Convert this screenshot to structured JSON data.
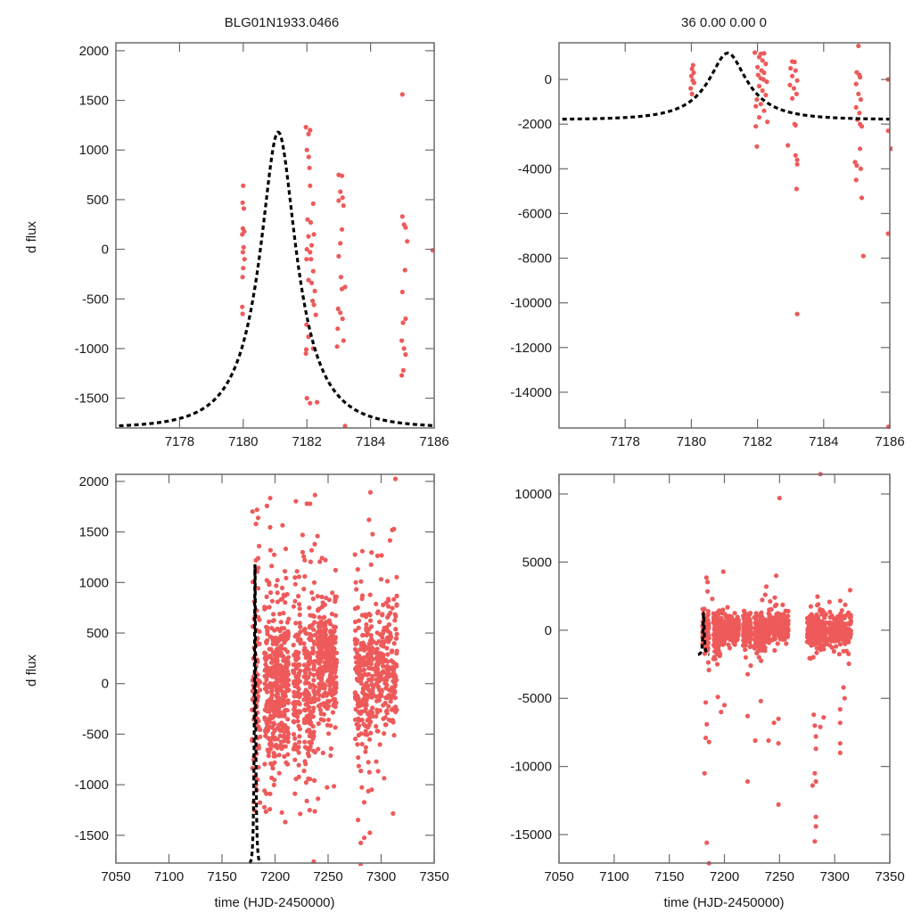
{
  "figure": {
    "title_left": "BLG01N1933.0466",
    "title_right": "36  0.00  0.00  0",
    "point_color": "#ee5a5a",
    "model_color": "#000000"
  },
  "chart_data": [
    {
      "id": "top-left",
      "type": "scatter",
      "title": "BLG01N1933.0466",
      "xlabel": "",
      "ylabel": "d flux",
      "xlim": [
        7176,
        7186
      ],
      "ylim": [
        -1800,
        2080
      ],
      "xticks": [
        7178,
        7180,
        7182,
        7184,
        7186
      ],
      "yticks": [
        -1500,
        -1000,
        -500,
        0,
        500,
        1000,
        1500,
        2000
      ],
      "model": {
        "name": "microlensing model",
        "t0": 7181.1,
        "tE": 1.6,
        "u0": 0.35,
        "amp": 1000,
        "baseline": -1800,
        "style": "dashed"
      },
      "points": [
        [
          7180.0,
          640
        ],
        [
          7179.98,
          470
        ],
        [
          7180.02,
          410
        ],
        [
          7179.99,
          210
        ],
        [
          7180.03,
          180
        ],
        [
          7179.97,
          150
        ],
        [
          7180.01,
          20
        ],
        [
          7179.99,
          -30
        ],
        [
          7180.04,
          -100
        ],
        [
          7180.0,
          -190
        ],
        [
          7179.98,
          -280
        ],
        [
          7179.97,
          -580
        ],
        [
          7179.98,
          -650
        ],
        [
          7181.97,
          1230
        ],
        [
          7182.1,
          1200
        ],
        [
          7182.05,
          1160
        ],
        [
          7182.0,
          1000
        ],
        [
          7182.06,
          930
        ],
        [
          7182.08,
          820
        ],
        [
          7182.1,
          640
        ],
        [
          7182.2,
          460
        ],
        [
          7182.02,
          300
        ],
        [
          7182.12,
          270
        ],
        [
          7182.22,
          150
        ],
        [
          7182.05,
          130
        ],
        [
          7182.15,
          40
        ],
        [
          7182.0,
          0
        ],
        [
          7182.1,
          -30
        ],
        [
          7181.99,
          -100
        ],
        [
          7182.13,
          -100
        ],
        [
          7182.2,
          -220
        ],
        [
          7182.05,
          -310
        ],
        [
          7182.15,
          -340
        ],
        [
          7182.25,
          -420
        ],
        [
          7182.18,
          -520
        ],
        [
          7182.22,
          -560
        ],
        [
          7181.99,
          -760
        ],
        [
          7182.28,
          -660
        ],
        [
          7182.05,
          -880
        ],
        [
          7182.2,
          -1000
        ],
        [
          7181.97,
          -1050
        ],
        [
          7181.98,
          -1010
        ],
        [
          7182.1,
          -1550
        ],
        [
          7182.0,
          -1500
        ],
        [
          7182.32,
          -1540
        ],
        [
          7183.0,
          750
        ],
        [
          7183.1,
          740
        ],
        [
          7183.05,
          580
        ],
        [
          7183.12,
          520
        ],
        [
          7183.0,
          490
        ],
        [
          7183.15,
          440
        ],
        [
          7183.1,
          200
        ],
        [
          7183.05,
          60
        ],
        [
          7183.0,
          -70
        ],
        [
          7183.07,
          -280
        ],
        [
          7183.2,
          -380
        ],
        [
          7183.1,
          -400
        ],
        [
          7182.98,
          -600
        ],
        [
          7183.05,
          -640
        ],
        [
          7183.12,
          -700
        ],
        [
          7182.97,
          -800
        ],
        [
          7183.15,
          -920
        ],
        [
          7182.95,
          -980
        ],
        [
          7183.2,
          -1780
        ],
        [
          7185.0,
          330
        ],
        [
          7185.05,
          250
        ],
        [
          7185.1,
          220
        ],
        [
          7185.15,
          80
        ],
        [
          7185.08,
          -210
        ],
        [
          7185.0,
          -430
        ],
        [
          7185.1,
          -700
        ],
        [
          7185.02,
          -740
        ],
        [
          7184.98,
          -920
        ],
        [
          7185.05,
          -1000
        ],
        [
          7185.1,
          -1060
        ],
        [
          7185.03,
          -1220
        ],
        [
          7184.98,
          -1270
        ],
        [
          7185.0,
          1560
        ],
        [
          7185.95,
          -10
        ]
      ]
    },
    {
      "id": "top-right",
      "type": "scatter",
      "title": "36  0.00  0.00  0",
      "xlabel": "",
      "ylabel": "",
      "xlim": [
        7176,
        7186
      ],
      "ylim": [
        -15600,
        1640
      ],
      "xticks": [
        7178,
        7180,
        7182,
        7184,
        7186
      ],
      "yticks": [
        -14000,
        -12000,
        -10000,
        -8000,
        -6000,
        -4000,
        -2000,
        0
      ],
      "model": {
        "name": "microlensing model",
        "t0": 7181.1,
        "tE": 1.6,
        "u0": 0.35,
        "amp": 1000,
        "baseline": -1800,
        "style": "dashed"
      },
      "points": [
        [
          7180.05,
          640
        ],
        [
          7180.02,
          470
        ],
        [
          7180.07,
          300
        ],
        [
          7180.0,
          150
        ],
        [
          7180.04,
          -40
        ],
        [
          7180.08,
          -150
        ],
        [
          7179.98,
          -400
        ],
        [
          7180.02,
          -650
        ],
        [
          7181.92,
          1200
        ],
        [
          7182.1,
          1150
        ],
        [
          7182.2,
          1170
        ],
        [
          7182.05,
          1000
        ],
        [
          7182.15,
          850
        ],
        [
          7182.25,
          700
        ],
        [
          7182.0,
          550
        ],
        [
          7182.12,
          400
        ],
        [
          7182.2,
          300
        ],
        [
          7182.02,
          200
        ],
        [
          7182.1,
          50
        ],
        [
          7182.18,
          0
        ],
        [
          7182.28,
          -100
        ],
        [
          7182.05,
          -300
        ],
        [
          7182.15,
          -500
        ],
        [
          7182.25,
          -700
        ],
        [
          7181.98,
          -900
        ],
        [
          7182.1,
          -1100
        ],
        [
          7182.2,
          -1400
        ],
        [
          7181.95,
          -1200
        ],
        [
          7182.05,
          -1700
        ],
        [
          7181.95,
          -2100
        ],
        [
          7182.3,
          -1900
        ],
        [
          7181.98,
          -3000
        ],
        [
          7183.05,
          800
        ],
        [
          7183.12,
          780
        ],
        [
          7183.0,
          500
        ],
        [
          7183.15,
          400
        ],
        [
          7183.05,
          150
        ],
        [
          7183.2,
          -50
        ],
        [
          7182.98,
          -250
        ],
        [
          7183.1,
          -400
        ],
        [
          7183.18,
          -650
        ],
        [
          7183.05,
          -850
        ],
        [
          7183.12,
          -2000
        ],
        [
          7183.15,
          -2050
        ],
        [
          7182.92,
          -2950
        ],
        [
          7183.15,
          -3400
        ],
        [
          7183.2,
          -3600
        ],
        [
          7183.2,
          -3800
        ],
        [
          7183.18,
          -4900
        ],
        [
          7183.2,
          -10500
        ],
        [
          7185.05,
          1500
        ],
        [
          7185.0,
          320
        ],
        [
          7185.08,
          200
        ],
        [
          7185.1,
          100
        ],
        [
          7184.98,
          -200
        ],
        [
          7185.05,
          -650
        ],
        [
          7185.12,
          -900
        ],
        [
          7184.98,
          -1250
        ],
        [
          7185.08,
          -1500
        ],
        [
          7185.02,
          -1800
        ],
        [
          7185.1,
          -2000
        ],
        [
          7185.15,
          -2100
        ],
        [
          7185.1,
          -3100
        ],
        [
          7184.95,
          -3700
        ],
        [
          7185.0,
          -3850
        ],
        [
          7185.12,
          -4000
        ],
        [
          7184.98,
          -4500
        ],
        [
          7185.15,
          -5300
        ],
        [
          7185.2,
          -7900
        ],
        [
          7185.95,
          0
        ],
        [
          7185.95,
          -6900
        ],
        [
          7186.05,
          -3100
        ],
        [
          7185.95,
          -2300
        ],
        [
          7185.96,
          -15550
        ]
      ]
    },
    {
      "id": "bottom-left",
      "type": "scatter",
      "title": "",
      "xlabel": "time (HJD-2450000)",
      "ylabel": "d flux",
      "xlim": [
        7050,
        7350
      ],
      "ylim": [
        -1775,
        2070
      ],
      "xticks": [
        7050,
        7100,
        7150,
        7200,
        7250,
        7300,
        7350
      ],
      "yticks": [
        -1500,
        -1000,
        -500,
        0,
        500,
        1000,
        1500,
        2000
      ],
      "model": {
        "name": "microlensing model",
        "t0": 7181.1,
        "tE": 1.6,
        "u0": 0.35,
        "amp": 1000,
        "baseline": -1800,
        "style": "dashed"
      },
      "seasons": [
        {
          "t_start": 7178,
          "t_end": 7186,
          "n": 90,
          "mean": 0,
          "sd": 650
        },
        {
          "t_start": 7190,
          "t_end": 7200,
          "n": 170,
          "mean": -80,
          "sd": 520
        },
        {
          "t_start": 7200,
          "t_end": 7213,
          "n": 240,
          "mean": 0,
          "sd": 420
        },
        {
          "t_start": 7217,
          "t_end": 7224,
          "n": 120,
          "mean": -50,
          "sd": 520
        },
        {
          "t_start": 7227,
          "t_end": 7238,
          "n": 170,
          "mean": -20,
          "sd": 560
        },
        {
          "t_start": 7240,
          "t_end": 7258,
          "n": 300,
          "mean": 230,
          "sd": 330
        },
        {
          "t_start": 7275,
          "t_end": 7293,
          "n": 230,
          "mean": 80,
          "sd": 460
        },
        {
          "t_start": 7295,
          "t_end": 7315,
          "n": 210,
          "mean": 120,
          "sd": 420
        }
      ],
      "highlights": [
        [
          7183,
          1720
        ],
        [
          7182,
          1580
        ],
        [
          7184,
          1640
        ],
        [
          7185,
          1360
        ],
        [
          7184,
          1240
        ],
        [
          7182,
          1220
        ],
        [
          7230,
          1780
        ],
        [
          7226,
          1470
        ],
        [
          7226,
          1300
        ],
        [
          7240,
          1460
        ],
        [
          7228,
          1060
        ],
        [
          7237,
          1000
        ],
        [
          7236,
          840
        ],
        [
          7245,
          800
        ],
        [
          7247,
          780
        ],
        [
          7278,
          1130
        ],
        [
          7281,
          1010
        ],
        [
          7282,
          840
        ],
        [
          7305,
          800
        ],
        [
          7307,
          820
        ]
      ]
    },
    {
      "id": "bottom-right",
      "type": "scatter",
      "title": "",
      "xlabel": "time (HJD-2450000)",
      "ylabel": "",
      "xlim": [
        7050,
        7350
      ],
      "ylim": [
        -17090,
        11440
      ],
      "xticks": [
        7050,
        7100,
        7150,
        7200,
        7250,
        7300,
        7350
      ],
      "yticks": [
        -15000,
        -10000,
        -5000,
        0,
        5000,
        10000
      ],
      "model": {
        "name": "microlensing model",
        "t0": 7181.1,
        "tE": 1.6,
        "u0": 0.35,
        "amp": 1000,
        "baseline": -1800,
        "style": "dashed"
      },
      "seasons": [
        {
          "t_start": 7180,
          "t_end": 7186,
          "n": 110,
          "mean": -200,
          "sd": 900
        },
        {
          "t_start": 7190,
          "t_end": 7200,
          "n": 170,
          "mean": -100,
          "sd": 700
        },
        {
          "t_start": 7200,
          "t_end": 7213,
          "n": 240,
          "mean": 0,
          "sd": 500
        },
        {
          "t_start": 7217,
          "t_end": 7224,
          "n": 120,
          "mean": -100,
          "sd": 650
        },
        {
          "t_start": 7227,
          "t_end": 7238,
          "n": 170,
          "mean": -100,
          "sd": 700
        },
        {
          "t_start": 7240,
          "t_end": 7258,
          "n": 300,
          "mean": 250,
          "sd": 500
        },
        {
          "t_start": 7275,
          "t_end": 7293,
          "n": 230,
          "mean": -100,
          "sd": 700
        },
        {
          "t_start": 7295,
          "t_end": 7315,
          "n": 210,
          "mean": 0,
          "sd": 600
        }
      ],
      "highlights": [
        [
          7287,
          11450
        ],
        [
          7250,
          9700
        ],
        [
          7199,
          4300
        ],
        [
          7247,
          4000
        ],
        [
          7238,
          3200
        ],
        [
          7237,
          2600
        ],
        [
          7189,
          2300
        ],
        [
          7183,
          -5300
        ],
        [
          7184,
          -6900
        ],
        [
          7183,
          -7900
        ],
        [
          7186,
          -8200
        ],
        [
          7182,
          -10500
        ],
        [
          7184,
          -15600
        ],
        [
          7186,
          -17100
        ],
        [
          7194,
          -4900
        ],
        [
          7200,
          -5500
        ],
        [
          7197,
          -6000
        ],
        [
          7221,
          -6300
        ],
        [
          7221,
          -11100
        ],
        [
          7228,
          -8100
        ],
        [
          7240,
          -8100
        ],
        [
          7245,
          -6800
        ],
        [
          7249,
          -6500
        ],
        [
          7249,
          -8300
        ],
        [
          7249,
          -12800
        ],
        [
          7233,
          -5200
        ],
        [
          7281,
          -6200
        ],
        [
          7282,
          -7000
        ],
        [
          7283,
          -7800
        ],
        [
          7283,
          -8700
        ],
        [
          7282,
          -10500
        ],
        [
          7280,
          -11400
        ],
        [
          7283,
          -11100
        ],
        [
          7283,
          -13700
        ],
        [
          7283,
          -14400
        ],
        [
          7282,
          -15500
        ],
        [
          7290,
          -6400
        ],
        [
          7287,
          -7100
        ],
        [
          7305,
          -5800
        ],
        [
          7305,
          -6800
        ],
        [
          7305,
          -8300
        ],
        [
          7305,
          -9000
        ],
        [
          7309,
          -5000
        ],
        [
          7308,
          -4200
        ]
      ]
    }
  ]
}
